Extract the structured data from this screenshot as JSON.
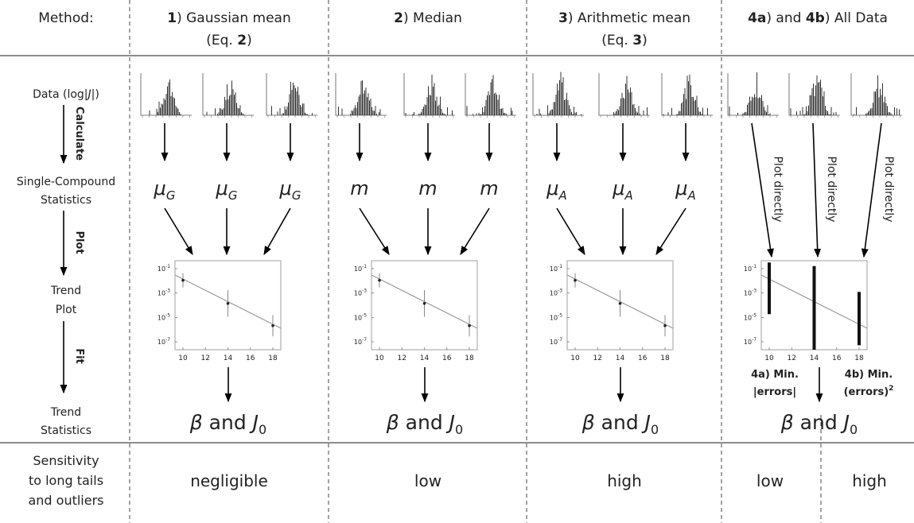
{
  "header": {
    "method": "Method:",
    "columns": [
      {
        "line1": [
          {
            "text": "1",
            "bold": true
          },
          {
            "text": ") Gaussian mean"
          }
        ],
        "line2": [
          {
            "text": "(Eq. "
          },
          {
            "text": "2",
            "bold": true
          },
          {
            "text": ")"
          }
        ]
      },
      {
        "line1": [
          {
            "text": "2",
            "bold": true
          },
          {
            "text": ") Median"
          }
        ]
      },
      {
        "line1": [
          {
            "text": "3",
            "bold": true
          },
          {
            "text": ") Arithmetic mean"
          }
        ],
        "line2": [
          {
            "text": "(Eq. "
          },
          {
            "text": "3",
            "bold": true
          },
          {
            "text": ")"
          }
        ]
      },
      {
        "line1": [
          {
            "text": "4a",
            "bold": true
          },
          {
            "text": ") and "
          },
          {
            "text": "4b",
            "bold": true
          },
          {
            "text": ") All Data"
          }
        ]
      }
    ]
  },
  "rows": {
    "data": [
      {
        "text": "Data (log|"
      },
      {
        "text": "J",
        "italic": true
      },
      {
        "text": "|)"
      }
    ],
    "calculate": "Calculate",
    "single_compound": [
      "Single-Compound",
      "Statistics"
    ],
    "plot": "Plot",
    "trend_plot": [
      "Trend",
      "Plot"
    ],
    "fit": "Fit",
    "trend_statistics": [
      "Trend",
      "Statistics"
    ],
    "sensitivity": [
      "Sensitivity",
      "to long tails",
      "and outliers"
    ]
  },
  "statistics": [
    {
      "symbol": "μ",
      "subscript": "G"
    },
    {
      "symbol": "m"
    },
    {
      "symbol": "μ",
      "subscript": "A"
    }
  ],
  "result": {
    "beta": "β",
    "and": " and ",
    "j": "J",
    "sub": "0"
  },
  "plot_directly": "Plot directly",
  "fit_labels": {
    "a": [
      "4a) Min.",
      "|errors|"
    ],
    "b": [
      "4b) Min.",
      "(errors)"
    ],
    "b_sup": "2"
  },
  "sensitivity_values": [
    "negligible",
    "low",
    "high",
    "low",
    "high"
  ],
  "trend_plot_axes": {
    "xticks": [
      10,
      12,
      14,
      16,
      18
    ],
    "yticks": [
      {
        "base": "10",
        "exp": "-1"
      },
      {
        "base": "10",
        "exp": "-3"
      },
      {
        "base": "10",
        "exp": "-5"
      },
      {
        "base": "10",
        "exp": "-7"
      }
    ]
  }
}
